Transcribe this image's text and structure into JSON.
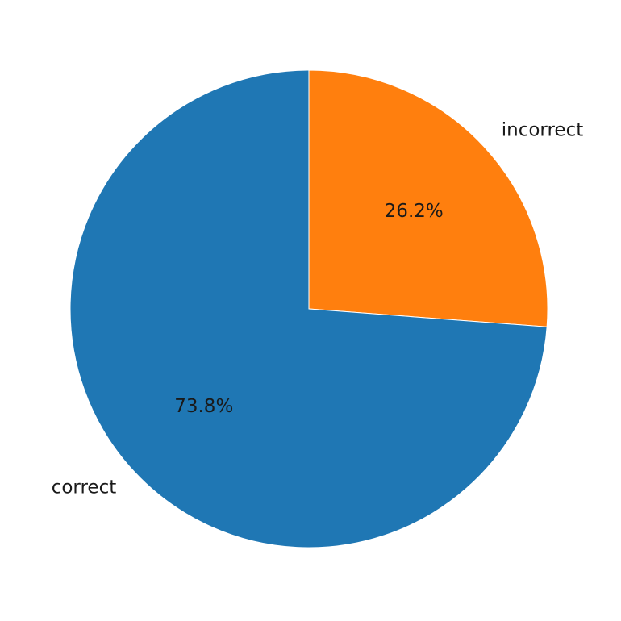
{
  "chart_data": {
    "type": "pie",
    "slices": [
      {
        "label": "incorrect",
        "value": 26.2,
        "pct_label": "26.2%",
        "color": "#ff7f0e"
      },
      {
        "label": "correct",
        "value": 73.8,
        "pct_label": "73.8%",
        "color": "#1f77b4"
      }
    ],
    "start_angle_deg": 90,
    "direction": "clockwise"
  }
}
